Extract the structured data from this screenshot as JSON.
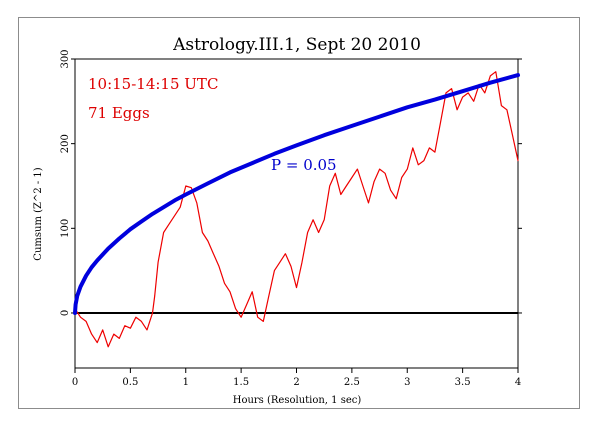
{
  "chart_data": {
    "type": "line",
    "title": "Astrology.III.1, Sept 20 2010",
    "xlabel": "Hours (Resolution, 1 sec)",
    "ylabel": "Cumsum (Z^2 - 1)",
    "xlim": [
      0,
      4
    ],
    "ylim": [
      -65,
      300
    ],
    "x_ticks": [
      "0",
      "0.5",
      "1",
      "1.5",
      "2",
      "2.5",
      "3",
      "3.5",
      "4"
    ],
    "x_tick_values": [
      0,
      0.5,
      1,
      1.5,
      2,
      2.5,
      3,
      3.5,
      4
    ],
    "y_ticks": [
      "0",
      "100",
      "200",
      "300"
    ],
    "y_tick_values": [
      0,
      100,
      200,
      300
    ],
    "annotations": {
      "time_range": "10:15-14:15 UTC",
      "eggs": "71 Eggs",
      "p_label": "P = 0.05"
    },
    "colors": {
      "cumsum": "#ee0000",
      "p_curve": "#0000dd",
      "zero_line": "#000000",
      "annotation_red": "#dd0000",
      "annotation_blue": "#0000cc"
    },
    "series": [
      {
        "key": "cumsum",
        "x": [
          0,
          0.05,
          0.1,
          0.15,
          0.2,
          0.25,
          0.3,
          0.35,
          0.4,
          0.45,
          0.5,
          0.55,
          0.6,
          0.65,
          0.7,
          0.72,
          0.75,
          0.8,
          0.85,
          0.9,
          0.95,
          1.0,
          1.05,
          1.1,
          1.15,
          1.2,
          1.25,
          1.3,
          1.35,
          1.4,
          1.45,
          1.5,
          1.55,
          1.6,
          1.65,
          1.7,
          1.75,
          1.8,
          1.85,
          1.9,
          1.95,
          2.0,
          2.05,
          2.1,
          2.15,
          2.2,
          2.25,
          2.3,
          2.35,
          2.4,
          2.45,
          2.5,
          2.55,
          2.6,
          2.65,
          2.7,
          2.75,
          2.8,
          2.85,
          2.9,
          2.95,
          3.0,
          3.05,
          3.1,
          3.15,
          3.2,
          3.25,
          3.3,
          3.35,
          3.4,
          3.45,
          3.5,
          3.55,
          3.6,
          3.65,
          3.7,
          3.75,
          3.8,
          3.85,
          3.9,
          3.95,
          4.0
        ],
        "y": [
          5,
          -5,
          -10,
          -25,
          -35,
          -20,
          -40,
          -25,
          -30,
          -15,
          -18,
          -5,
          -10,
          -20,
          0,
          20,
          60,
          95,
          105,
          115,
          125,
          150,
          148,
          130,
          95,
          85,
          70,
          55,
          35,
          25,
          5,
          -5,
          10,
          25,
          -5,
          -10,
          20,
          50,
          60,
          70,
          55,
          30,
          60,
          95,
          110,
          95,
          110,
          150,
          165,
          140,
          150,
          160,
          170,
          150,
          130,
          155,
          170,
          165,
          145,
          135,
          160,
          170,
          195,
          175,
          180,
          195,
          190,
          225,
          260,
          265,
          240,
          255,
          260,
          250,
          270,
          260,
          280,
          285,
          245,
          240,
          210,
          180
        ]
      },
      {
        "key": "p_curve",
        "x": [
          0,
          0.005,
          0.02,
          0.05,
          0.1,
          0.15,
          0.2,
          0.3,
          0.4,
          0.5,
          0.6,
          0.7,
          0.8,
          0.9,
          1.0,
          1.2,
          1.4,
          1.6,
          1.8,
          2.0,
          2.25,
          2.5,
          2.75,
          3.0,
          3.25,
          3.5,
          3.75,
          4.0
        ],
        "y": [
          0,
          10,
          20,
          31,
          44,
          54,
          62,
          76,
          88,
          99,
          108,
          117,
          125,
          133,
          140,
          153,
          166,
          177,
          188,
          198,
          210,
          221,
          232,
          243,
          252,
          262,
          272,
          281
        ]
      }
    ]
  }
}
